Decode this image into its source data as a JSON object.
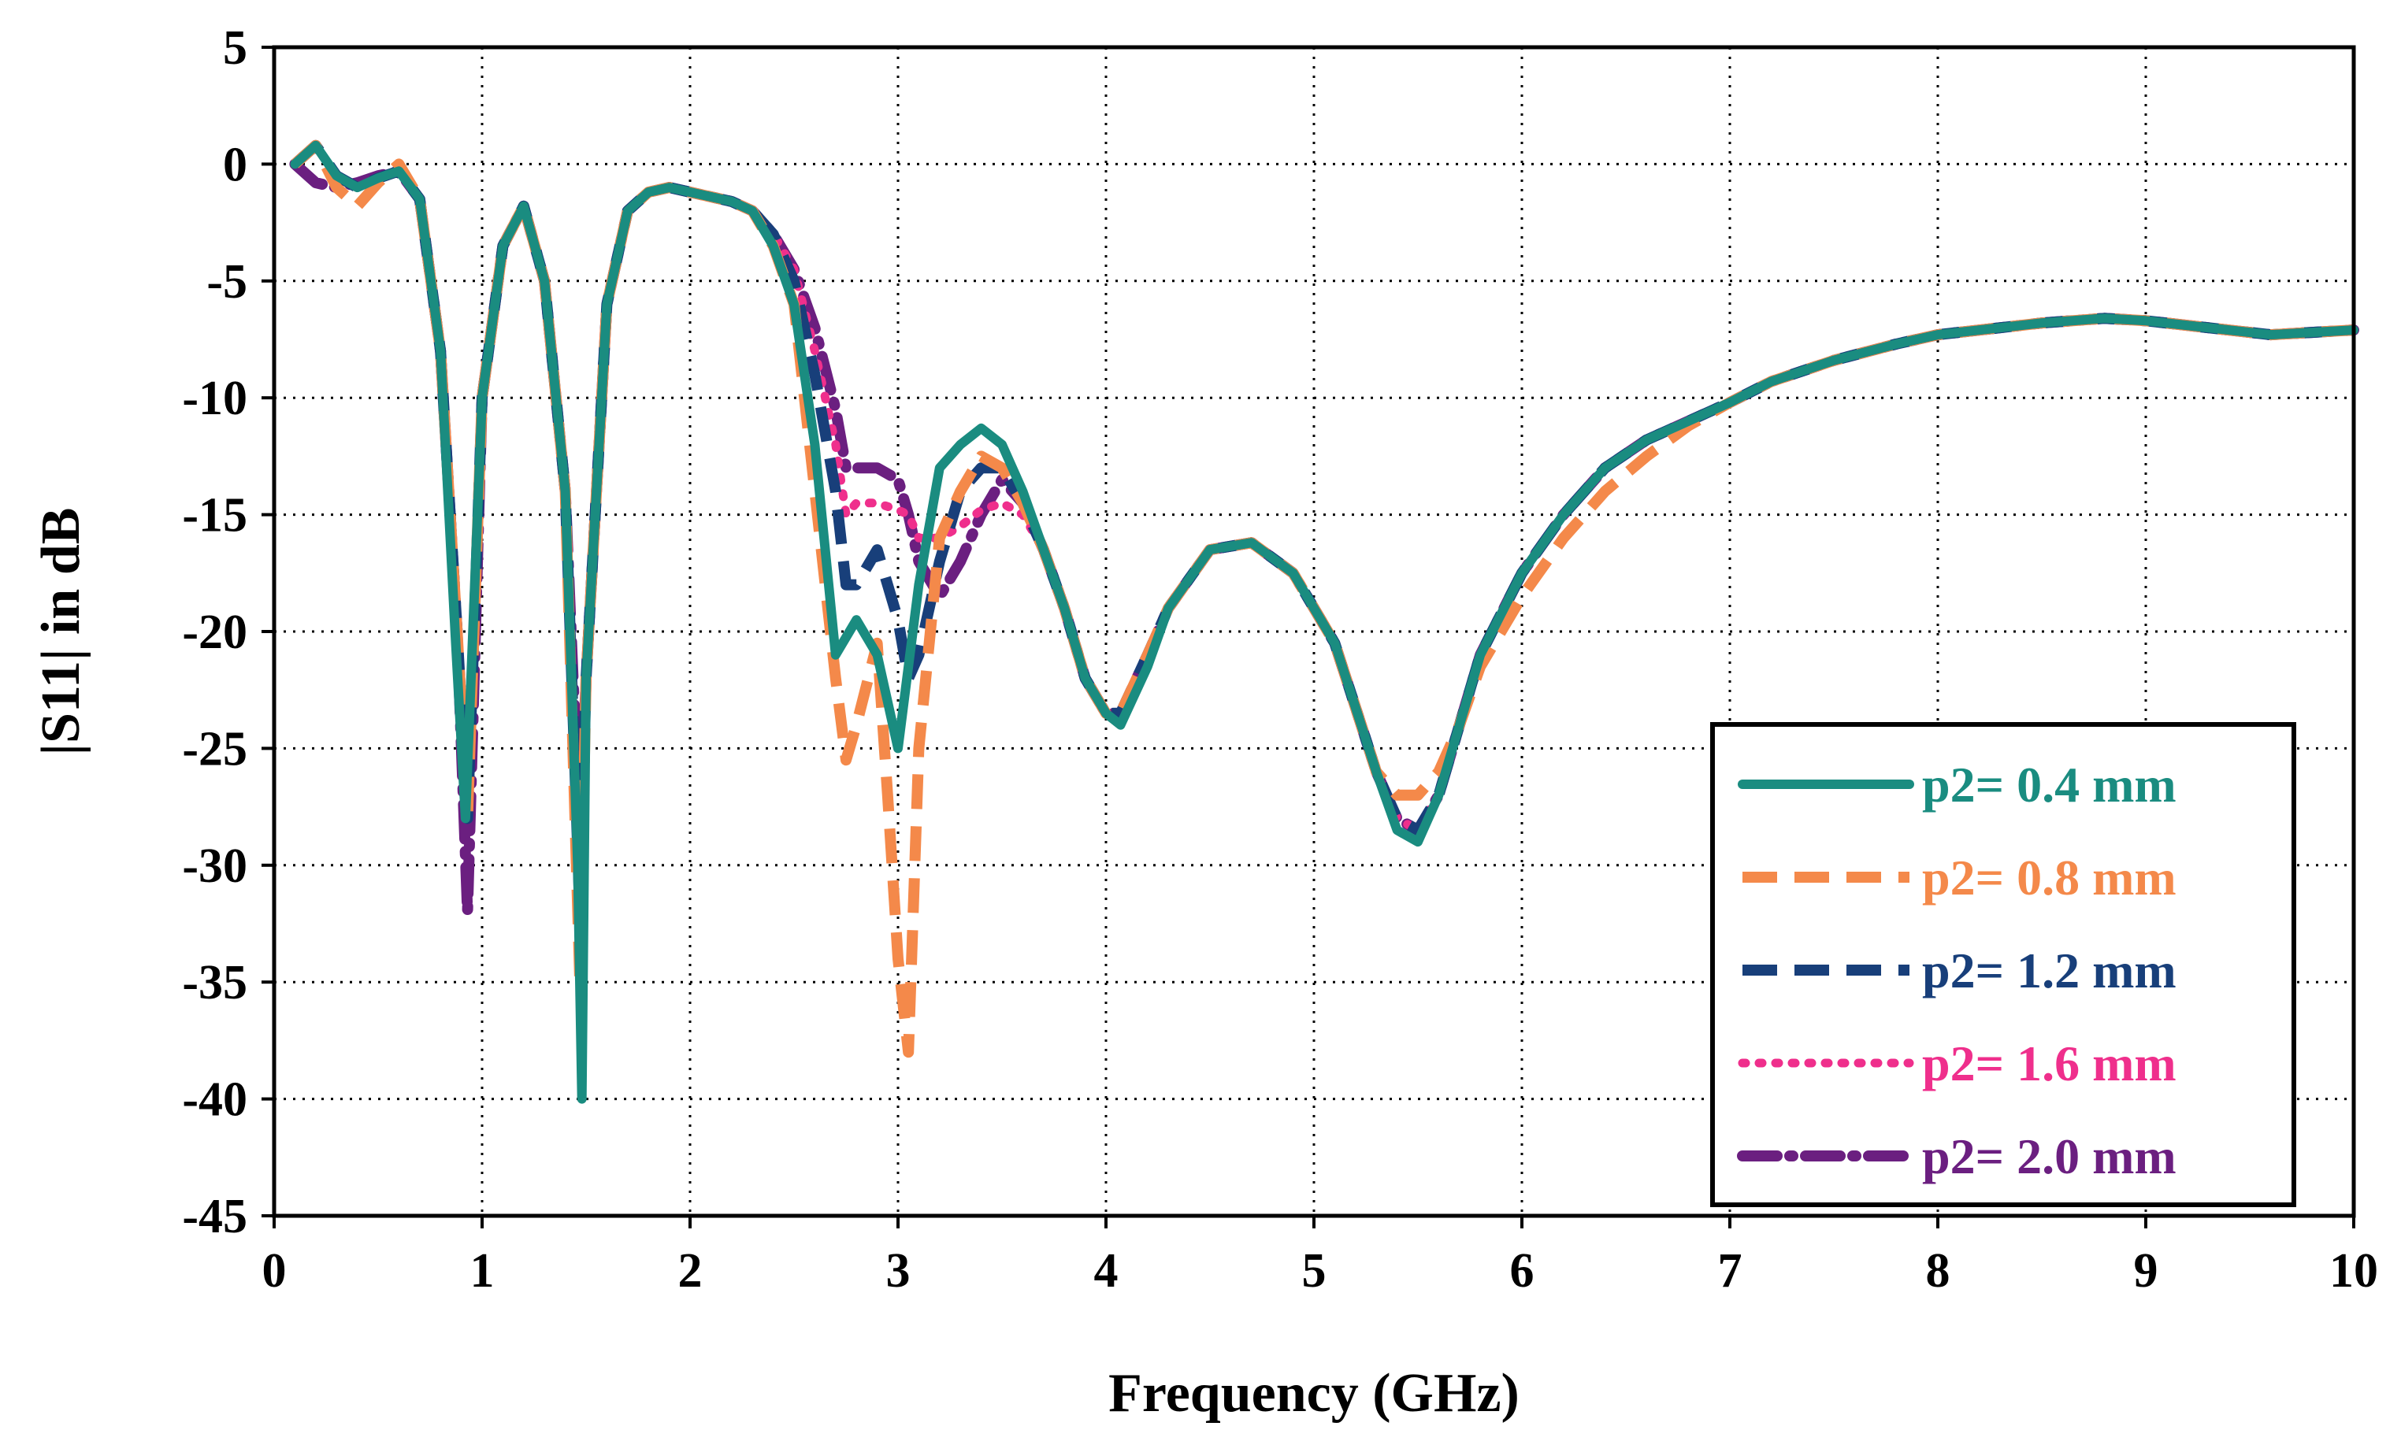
{
  "chart_data": {
    "type": "line",
    "title": "",
    "xlabel": "Frequency (GHz)",
    "ylabel": "|S11| in dB",
    "xlim": [
      0,
      10
    ],
    "ylim": [
      -45,
      5
    ],
    "xticks": [
      0,
      1,
      2,
      3,
      4,
      5,
      6,
      7,
      8,
      9,
      10
    ],
    "yticks": [
      5,
      0,
      -5,
      -10,
      -15,
      -20,
      -25,
      -30,
      -35,
      -40,
      -45
    ],
    "grid": "dotted",
    "legend_position": "bottom-right",
    "series": [
      {
        "name": "p2= 0.4 mm",
        "color": "#1a8c80",
        "style": "solid",
        "x": [
          0.1,
          0.2,
          0.3,
          0.4,
          0.5,
          0.6,
          0.7,
          0.8,
          0.87,
          0.92,
          1.0,
          1.1,
          1.2,
          1.3,
          1.4,
          1.46,
          1.48,
          1.5,
          1.6,
          1.7,
          1.8,
          1.9,
          2.0,
          2.2,
          2.3,
          2.4,
          2.5,
          2.6,
          2.7,
          2.8,
          2.9,
          3.0,
          3.1,
          3.2,
          3.3,
          3.4,
          3.5,
          3.6,
          3.7,
          3.8,
          3.9,
          4.0,
          4.07,
          4.2,
          4.3,
          4.5,
          4.7,
          4.9,
          5.1,
          5.3,
          5.4,
          5.5,
          5.6,
          5.7,
          5.8,
          6.0,
          6.2,
          6.4,
          6.6,
          6.8,
          7.0,
          7.2,
          7.5,
          7.8,
          8.0,
          8.3,
          8.5,
          8.8,
          9.0,
          9.3,
          9.6,
          9.8,
          10.0
        ],
        "y": [
          0,
          0.8,
          -0.5,
          -1.0,
          -0.6,
          -0.3,
          -1.5,
          -8,
          -20,
          -28,
          -10,
          -3.5,
          -1.8,
          -5,
          -14,
          -30,
          -40,
          -22,
          -6,
          -2,
          -1.2,
          -1.0,
          -1.2,
          -1.6,
          -2.0,
          -3.5,
          -6,
          -12,
          -21,
          -19.5,
          -21,
          -25,
          -18,
          -13,
          -12,
          -11.3,
          -12,
          -14,
          -16.5,
          -19,
          -22,
          -23.5,
          -24,
          -21.5,
          -19,
          -16.5,
          -16.2,
          -17.5,
          -20.5,
          -26,
          -28.5,
          -29,
          -27,
          -24,
          -21,
          -17.5,
          -15,
          -13,
          -11.8,
          -11,
          -10.2,
          -9.3,
          -8.4,
          -7.7,
          -7.3,
          -7.0,
          -6.8,
          -6.6,
          -6.7,
          -7.0,
          -7.3,
          -7.2,
          -7.1
        ]
      },
      {
        "name": "p2= 0.8 mm",
        "color": "#f4894a",
        "style": "dashed",
        "x": [
          0.1,
          0.2,
          0.3,
          0.4,
          0.5,
          0.6,
          0.7,
          0.8,
          0.88,
          0.93,
          1.0,
          1.1,
          1.2,
          1.3,
          1.4,
          1.47,
          1.5,
          1.6,
          1.7,
          1.8,
          1.9,
          2.0,
          2.2,
          2.3,
          2.4,
          2.5,
          2.6,
          2.7,
          2.75,
          2.8,
          2.9,
          2.95,
          3.0,
          3.05,
          3.1,
          3.2,
          3.3,
          3.4,
          3.5,
          3.6,
          3.7,
          3.8,
          3.9,
          4.0,
          4.07,
          4.2,
          4.3,
          4.5,
          4.7,
          4.9,
          5.1,
          5.3,
          5.4,
          5.5,
          5.6,
          5.7,
          5.8,
          6.0,
          6.2,
          6.4,
          6.6,
          6.8,
          7.0,
          7.2,
          7.5,
          7.8,
          8.0,
          8.3,
          8.5,
          8.8,
          9.0,
          9.3,
          9.6,
          9.8,
          10.0
        ],
        "y": [
          0,
          0.8,
          -1.0,
          -1.8,
          -0.8,
          0,
          -1.5,
          -8,
          -20,
          -28,
          -10,
          -3.5,
          -1.8,
          -5,
          -14,
          -35,
          -22,
          -6,
          -2,
          -1.2,
          -1.0,
          -1.2,
          -1.6,
          -2.0,
          -3.5,
          -6,
          -14,
          -22,
          -25.5,
          -24,
          -20.5,
          -27,
          -34,
          -38,
          -25,
          -16,
          -14,
          -12.5,
          -13,
          -14.5,
          -16.5,
          -19,
          -22,
          -23.5,
          -23.5,
          -21,
          -19,
          -16.5,
          -16.2,
          -17.5,
          -20.5,
          -26,
          -27,
          -27,
          -26,
          -24,
          -21.5,
          -18.5,
          -16,
          -14,
          -12.5,
          -11.2,
          -10.2,
          -9.3,
          -8.4,
          -7.7,
          -7.3,
          -7.0,
          -6.8,
          -6.6,
          -6.7,
          -7.0,
          -7.3,
          -7.2,
          -7.1
        ]
      },
      {
        "name": "p2= 1.2 mm",
        "color": "#183f7a",
        "style": "dashed",
        "x": [
          0.1,
          0.2,
          0.3,
          0.4,
          0.5,
          0.6,
          0.7,
          0.8,
          0.88,
          0.93,
          1.0,
          1.1,
          1.2,
          1.3,
          1.4,
          1.47,
          1.5,
          1.6,
          1.7,
          1.8,
          1.9,
          2.0,
          2.2,
          2.3,
          2.4,
          2.5,
          2.6,
          2.7,
          2.75,
          2.8,
          2.9,
          3.0,
          3.05,
          3.1,
          3.2,
          3.3,
          3.4,
          3.5,
          3.6,
          3.7,
          3.8,
          3.9,
          4.0,
          4.07,
          4.2,
          4.3,
          4.5,
          4.7,
          4.9,
          5.1,
          5.3,
          5.4,
          5.5,
          5.6,
          5.7,
          5.8,
          6.0,
          6.2,
          6.4,
          6.6,
          6.8,
          7.0,
          7.2,
          7.5,
          7.8,
          8.0,
          8.3,
          8.5,
          8.8,
          9.0,
          9.3,
          9.6,
          9.8,
          10.0
        ],
        "y": [
          0,
          0.8,
          -0.5,
          -1.0,
          -0.6,
          -0.3,
          -1.5,
          -8,
          -20,
          -28,
          -10,
          -3.5,
          -1.8,
          -5,
          -14,
          -32,
          -22,
          -6,
          -2,
          -1.2,
          -1.0,
          -1.2,
          -1.6,
          -2.0,
          -3.0,
          -5,
          -9,
          -14,
          -18,
          -18,
          -16.5,
          -19.5,
          -22,
          -21,
          -17,
          -14,
          -13,
          -13,
          -14.5,
          -16.5,
          -19,
          -22,
          -23.5,
          -23.5,
          -21,
          -19,
          -16.5,
          -16.2,
          -17.5,
          -20.5,
          -26,
          -28,
          -28.5,
          -27,
          -24,
          -21,
          -17.5,
          -15,
          -13,
          -11.8,
          -11,
          -10.2,
          -9.3,
          -8.4,
          -7.7,
          -7.3,
          -7.0,
          -6.8,
          -6.6,
          -6.7,
          -7.0,
          -7.3,
          -7.2,
          -7.1
        ]
      },
      {
        "name": "p2= 1.6 mm",
        "color": "#ef2f8c",
        "style": "dotted",
        "x": [
          0.1,
          0.2,
          0.3,
          0.4,
          0.5,
          0.6,
          0.7,
          0.8,
          0.88,
          0.93,
          1.0,
          1.1,
          1.2,
          1.3,
          1.4,
          1.47,
          1.5,
          1.6,
          1.7,
          1.8,
          1.9,
          2.0,
          2.2,
          2.3,
          2.4,
          2.5,
          2.6,
          2.7,
          2.75,
          2.8,
          2.9,
          3.0,
          3.05,
          3.1,
          3.2,
          3.3,
          3.4,
          3.5,
          3.6,
          3.7,
          3.8,
          3.9,
          4.0,
          4.07,
          4.2,
          4.3,
          4.5,
          4.7,
          4.9,
          5.1,
          5.3,
          5.4,
          5.5,
          5.6,
          5.7,
          5.8,
          6.0,
          6.2,
          6.4,
          6.6,
          6.8,
          7.0,
          7.2,
          7.5,
          7.8,
          8.0,
          8.3,
          8.5,
          8.8,
          9.0,
          9.3,
          9.6,
          9.8,
          10.0
        ],
        "y": [
          0,
          0.8,
          -0.5,
          -1.0,
          -0.6,
          -0.3,
          -1.5,
          -8,
          -20,
          -28,
          -10,
          -3.5,
          -1.8,
          -5,
          -14,
          -33,
          -22,
          -6,
          -2,
          -1.2,
          -1.0,
          -1.2,
          -1.6,
          -2.0,
          -3.0,
          -4.5,
          -8,
          -12,
          -15,
          -14.5,
          -14.5,
          -14.8,
          -15,
          -16,
          -16,
          -15.5,
          -14.8,
          -14.5,
          -15,
          -16.5,
          -19,
          -22,
          -23.5,
          -23.5,
          -21,
          -19,
          -16.5,
          -16.2,
          -17.5,
          -20.5,
          -26,
          -28,
          -28.5,
          -27,
          -24,
          -21,
          -17.5,
          -15,
          -13,
          -11.8,
          -11,
          -10.2,
          -9.3,
          -8.4,
          -7.7,
          -7.3,
          -7.0,
          -6.8,
          -6.6,
          -6.7,
          -7.0,
          -7.3,
          -7.2,
          -7.1
        ]
      },
      {
        "name": "p2= 2.0 mm",
        "color": "#6b1f80",
        "style": "dashdot",
        "x": [
          0.1,
          0.2,
          0.3,
          0.4,
          0.5,
          0.6,
          0.7,
          0.8,
          0.88,
          0.93,
          1.0,
          1.1,
          1.2,
          1.3,
          1.4,
          1.47,
          1.5,
          1.6,
          1.7,
          1.8,
          1.9,
          2.0,
          2.2,
          2.3,
          2.4,
          2.5,
          2.6,
          2.7,
          2.75,
          2.8,
          2.9,
          3.0,
          3.05,
          3.1,
          3.2,
          3.3,
          3.4,
          3.5,
          3.6,
          3.7,
          3.8,
          3.9,
          4.0,
          4.07,
          4.2,
          4.3,
          4.5,
          4.7,
          4.9,
          5.1,
          5.3,
          5.4,
          5.5,
          5.6,
          5.7,
          5.8,
          6.0,
          6.2,
          6.4,
          6.6,
          6.8,
          7.0,
          7.2,
          7.5,
          7.8,
          8.0,
          8.3,
          8.5,
          8.8,
          9.0,
          9.3,
          9.6,
          9.8,
          10.0
        ],
        "y": [
          0,
          -0.8,
          -1.0,
          -0.8,
          -0.5,
          -0.3,
          -1.5,
          -8,
          -20,
          -32,
          -10,
          -3.5,
          -1.8,
          -5,
          -14,
          -29,
          -22,
          -6,
          -2,
          -1.2,
          -1.0,
          -1.2,
          -1.6,
          -2.0,
          -3.0,
          -4.5,
          -7,
          -10.5,
          -13,
          -13,
          -13,
          -13.5,
          -15,
          -17,
          -18.5,
          -17,
          -15,
          -13.5,
          -14.5,
          -16.5,
          -19,
          -22,
          -23.5,
          -23.5,
          -21,
          -19,
          -16.5,
          -16.2,
          -17.5,
          -20.5,
          -26,
          -28,
          -28.5,
          -27,
          -24,
          -21,
          -17.5,
          -15,
          -13,
          -11.8,
          -11,
          -10.2,
          -9.3,
          -8.4,
          -7.7,
          -7.3,
          -7.0,
          -6.8,
          -6.6,
          -6.7,
          -7.0,
          -7.3,
          -7.2,
          -7.1
        ]
      }
    ]
  }
}
